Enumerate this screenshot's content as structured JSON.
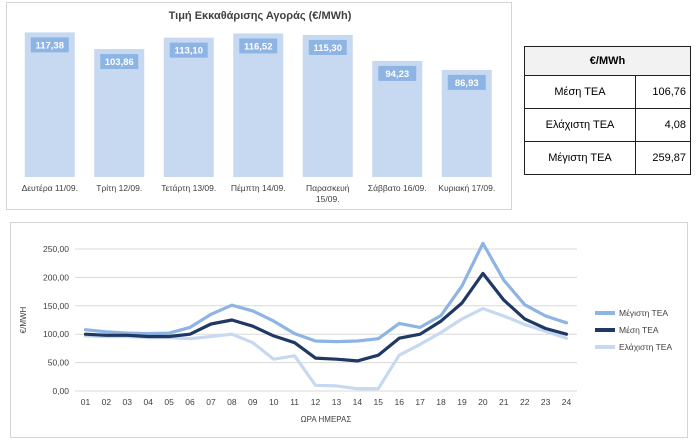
{
  "chart_data": [
    {
      "type": "bar",
      "title": "Τιμή Εκκαθάρισης Αγοράς (€/MWh)",
      "categories": [
        [
          "Δευτέρα 11/09."
        ],
        [
          "Τρίτη 12/09."
        ],
        [
          "Τετάρτη 13/09."
        ],
        [
          "Πέμπτη 14/09."
        ],
        [
          "Παρασκευή",
          "15/09."
        ],
        [
          "Σάββατο 16/09."
        ],
        [
          "Κυριακή 17/09."
        ]
      ],
      "values": [
        117.38,
        103.86,
        113.1,
        116.52,
        115.3,
        94.23,
        86.93
      ],
      "value_labels": [
        "117,38",
        "103,86",
        "113,10",
        "116,52",
        "115,30",
        "94,23",
        "86,93"
      ],
      "ylim": [
        0,
        125
      ],
      "bar_color": "#c6d9f1",
      "label_box_color": "#8eb4e3"
    },
    {
      "type": "line",
      "xlabel": "ΩΡΑ ΗΜΕΡΑΣ",
      "ylabel": "€/MWH",
      "x": [
        "01",
        "02",
        "03",
        "04",
        "05",
        "06",
        "07",
        "08",
        "09",
        "10",
        "11",
        "12",
        "13",
        "14",
        "15",
        "16",
        "17",
        "18",
        "19",
        "20",
        "21",
        "22",
        "23",
        "24"
      ],
      "ylim": [
        0,
        250
      ],
      "yticks": [
        "0,00",
        "50,00",
        "100,00",
        "150,00",
        "200,00",
        "250,00"
      ],
      "legend_position": "right",
      "series": [
        {
          "name": "Μέγιστη ΤΕΑ",
          "color": "#8eb4e3",
          "values": [
            108,
            104,
            102,
            101,
            102,
            112,
            135,
            151,
            141,
            123,
            101,
            88,
            87,
            88,
            92,
            119,
            112,
            133,
            185,
            260,
            195,
            152,
            132,
            120
          ]
        },
        {
          "name": "Μέση ΤΕΑ",
          "color": "#1f3864",
          "values": [
            100,
            98,
            98,
            96,
            96,
            100,
            118,
            125,
            114,
            97,
            85,
            58,
            56,
            53,
            63,
            93,
            100,
            123,
            155,
            207,
            160,
            127,
            110,
            100
          ]
        },
        {
          "name": "Ελάχιστη ΤΕΑ",
          "color": "#c6d9f1",
          "values": [
            97,
            96,
            96,
            94,
            94,
            92,
            96,
            100,
            85,
            56,
            62,
            10,
            9,
            4,
            4,
            63,
            82,
            103,
            127,
            145,
            132,
            117,
            105,
            93
          ]
        }
      ]
    }
  ],
  "stats_table": {
    "header": "€/MWh",
    "rows": [
      {
        "label": "Μέση ΤΕΑ",
        "value": "106,76"
      },
      {
        "label": "Ελάχιστη ΤΕΑ",
        "value": "4,08"
      },
      {
        "label": "Μέγιστη ΤΕΑ",
        "value": "259,87"
      }
    ]
  }
}
